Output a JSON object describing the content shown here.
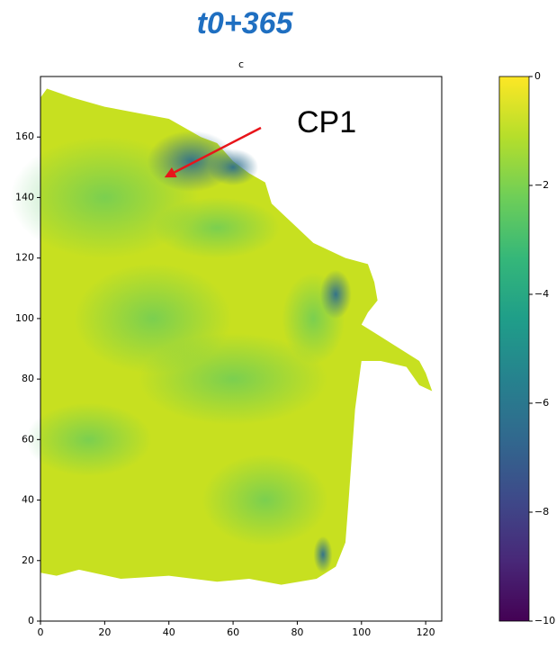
{
  "chart_data": {
    "type": "heatmap",
    "title": "t0+365",
    "subtitle": "c",
    "annotation": "CP1",
    "xlim": [
      0,
      125
    ],
    "ylim": [
      0,
      180
    ],
    "xticks": [
      0,
      20,
      40,
      60,
      80,
      100,
      120
    ],
    "yticks": [
      0,
      20,
      40,
      60,
      80,
      100,
      120,
      140,
      160
    ],
    "colormap": "viridis_r",
    "colorbar": {
      "lim": [
        -10,
        0
      ],
      "ticks": [
        0,
        {
          "value": -2,
          "label": "−2"
        },
        {
          "value": -4,
          "label": "−4"
        },
        {
          "value": -6,
          "label": "−6"
        },
        {
          "value": -8,
          "label": "−8"
        },
        {
          "value": -10,
          "label": "−10"
        }
      ]
    }
  }
}
